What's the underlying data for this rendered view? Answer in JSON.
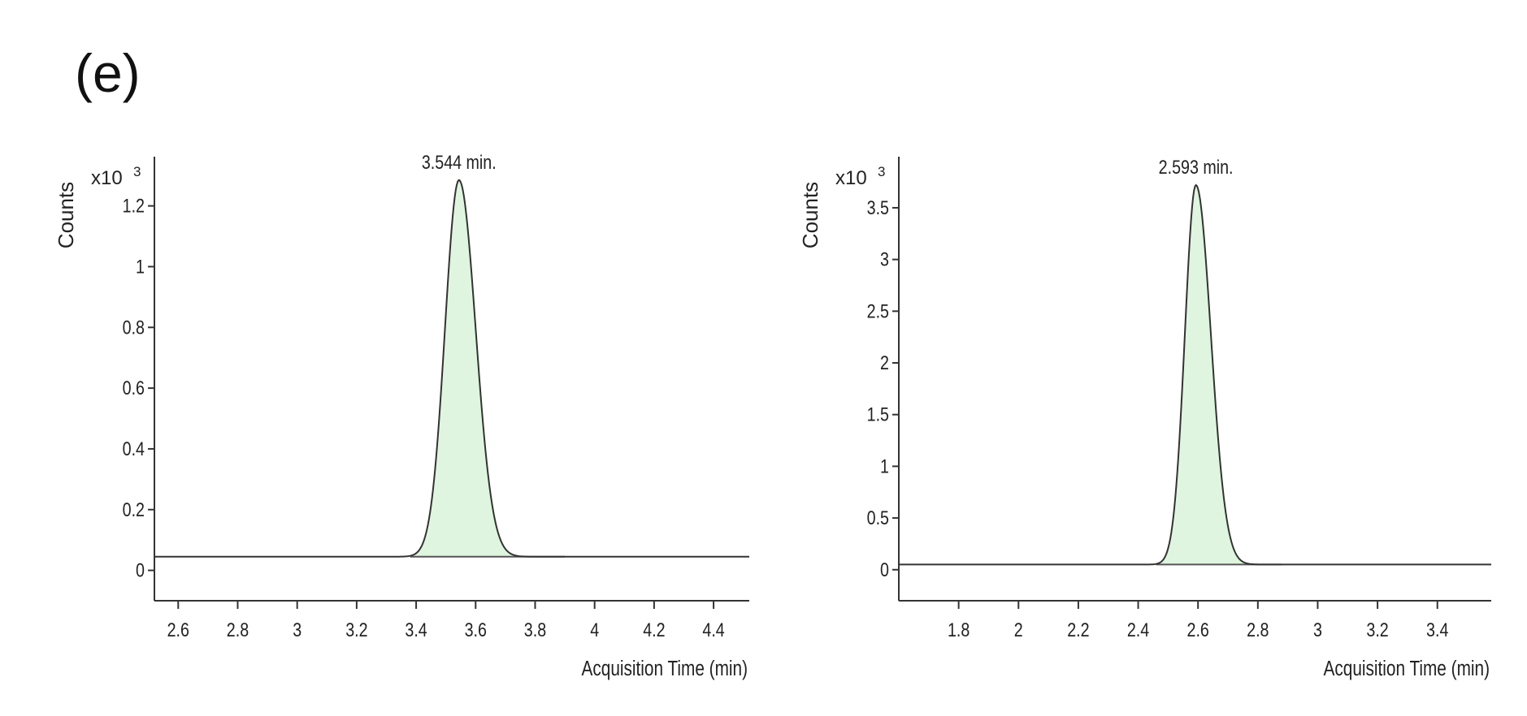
{
  "panel_label": "(e)",
  "colors": {
    "peak_fill": "#dff5df",
    "trace": "#333333",
    "axis": "#333333",
    "baseline": "#555555"
  },
  "chart_data": [
    {
      "type": "line",
      "title": "",
      "xlabel": "Acquisition Time (min)",
      "ylabel": "Counts",
      "y_multiplier": "x10",
      "y_exponent": "3",
      "xlim": [
        2.52,
        4.52
      ],
      "ylim": [
        -0.1,
        1.33
      ],
      "x_ticks": [
        2.6,
        2.8,
        3,
        3.2,
        3.4,
        3.6,
        3.8,
        4,
        4.2,
        4.4
      ],
      "x_tick_labels": [
        "2.6",
        "2.8",
        "3",
        "3.2",
        "3.4",
        "3.6",
        "3.8",
        "4",
        "4.2",
        "4.4"
      ],
      "y_ticks": [
        0,
        0.2,
        0.4,
        0.6,
        0.8,
        1,
        1.2
      ],
      "y_tick_labels": [
        "0",
        "0.2",
        "0.4",
        "0.6",
        "0.8",
        "1",
        "1.2"
      ],
      "baseline": 0.045,
      "peak": {
        "apex_x": 3.544,
        "height": 1.285,
        "sigma_left": 0.047,
        "sigma_right": 0.056,
        "fill_from": 3.38,
        "fill_to": 3.9
      },
      "annotations": [
        {
          "text": "3.544 min.",
          "x": 3.544
        }
      ],
      "grid": false
    },
    {
      "type": "line",
      "title": "",
      "xlabel": "Acquisition Time (min)",
      "ylabel": "Counts",
      "y_multiplier": "x10",
      "y_exponent": "3",
      "xlim": [
        1.6,
        3.58
      ],
      "ylim": [
        -0.3,
        3.9
      ],
      "x_ticks": [
        1.8,
        2,
        2.2,
        2.4,
        2.6,
        2.8,
        3,
        3.2,
        3.4
      ],
      "x_tick_labels": [
        "1.8",
        "2",
        "2.2",
        "2.4",
        "2.6",
        "2.8",
        "3",
        "3.2",
        "3.4"
      ],
      "y_ticks": [
        0,
        0.5,
        1,
        1.5,
        2,
        2.5,
        3,
        3.5
      ],
      "y_tick_labels": [
        "0",
        "0.5",
        "1",
        "1.5",
        "2",
        "2.5",
        "3",
        "3.5"
      ],
      "baseline": 0.05,
      "peak": {
        "apex_x": 2.593,
        "height": 3.72,
        "sigma_left": 0.037,
        "sigma_right": 0.05,
        "fill_from": 2.46,
        "fill_to": 2.88
      },
      "annotations": [
        {
          "text": "2.593 min.",
          "x": 2.593
        }
      ],
      "grid": false
    }
  ]
}
